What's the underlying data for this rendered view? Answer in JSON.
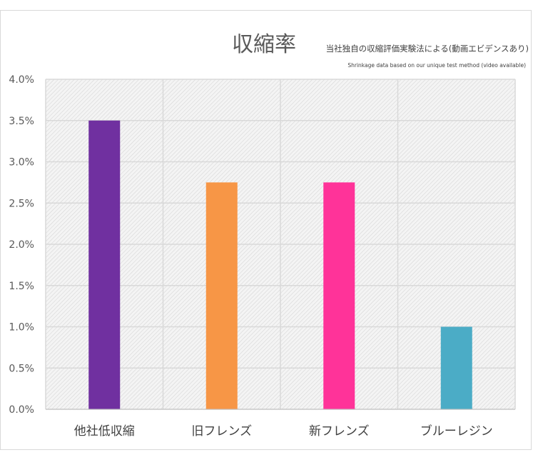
{
  "chart_data": {
    "type": "bar",
    "title": "収縮率",
    "subtitle": "当社独自の収縮評価実験法による(動画エビデンスあり)",
    "subtitle_en": "Shrinkage data based on our unique test method (video available)",
    "categories": [
      "他社低収縮",
      "旧フレンズ",
      "新フレンズ",
      "ブルーレジン"
    ],
    "values": [
      0.035,
      0.0275,
      0.0275,
      0.01
    ],
    "bar_colors": [
      "#7030a0",
      "#f79646",
      "#ff3399",
      "#4bacc6"
    ],
    "ylim": [
      0,
      0.04
    ],
    "yticks": [
      {
        "value": 0.0,
        "label": "0.0%"
      },
      {
        "value": 0.005,
        "label": "0.5%"
      },
      {
        "value": 0.01,
        "label": "1.0%"
      },
      {
        "value": 0.015,
        "label": "1.5%"
      },
      {
        "value": 0.02,
        "label": "2.0%"
      },
      {
        "value": 0.025,
        "label": "2.5%"
      },
      {
        "value": 0.03,
        "label": "3.0%"
      },
      {
        "value": 0.035,
        "label": "3.5%"
      },
      {
        "value": 0.04,
        "label": "4.0%"
      }
    ],
    "grid": true,
    "plot_background": "hatched-gray"
  }
}
